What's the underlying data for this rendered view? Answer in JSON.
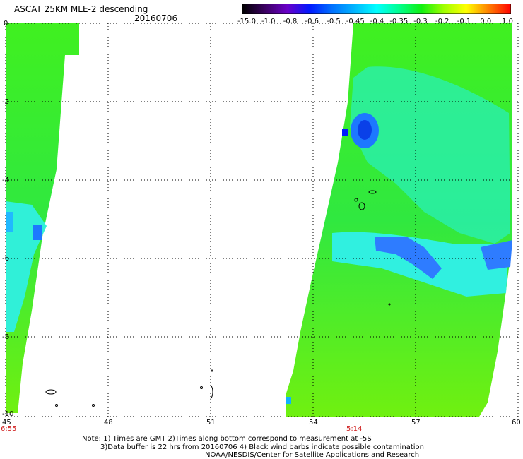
{
  "header": {
    "title": "ASCAT 25KM MLE-2 descending",
    "date": "20160706"
  },
  "colorbar": {
    "labels": [
      "-15.0",
      "-1.0",
      "-0.8",
      "-0.6",
      "-0.5",
      "-0.45",
      "-0.4",
      "-0.35",
      "-0.3",
      "-0.2",
      "-0.1",
      "0.0",
      "1.0"
    ],
    "colors": [
      "#000000",
      "#3a0060",
      "#6a00c8",
      "#0018ff",
      "#0070ff",
      "#00b4ff",
      "#00ffff",
      "#00ff90",
      "#10f010",
      "#a0ff00",
      "#ffff00",
      "#ff8000",
      "#ff0000"
    ]
  },
  "axes": {
    "x_ticks": [
      "45",
      "48",
      "51",
      "54",
      "57",
      "60"
    ],
    "y_ticks": [
      "0",
      "-2",
      "-4",
      "-6",
      "-8",
      "-10"
    ],
    "x_range": [
      45,
      60
    ],
    "y_range": [
      -10,
      0
    ]
  },
  "times": {
    "left_time": "6:55",
    "right_time": "5:14"
  },
  "notes": {
    "line1": "Note: 1) Times are GMT 2)Times along bottom correspond to measurement at -5S",
    "line2": "3)Data buffer is 22 hrs from 20160706 4) Black wind barbs indicate possible contamination",
    "line3": "NOAA/NESDIS/Center for Satellite Applications and Research"
  }
}
